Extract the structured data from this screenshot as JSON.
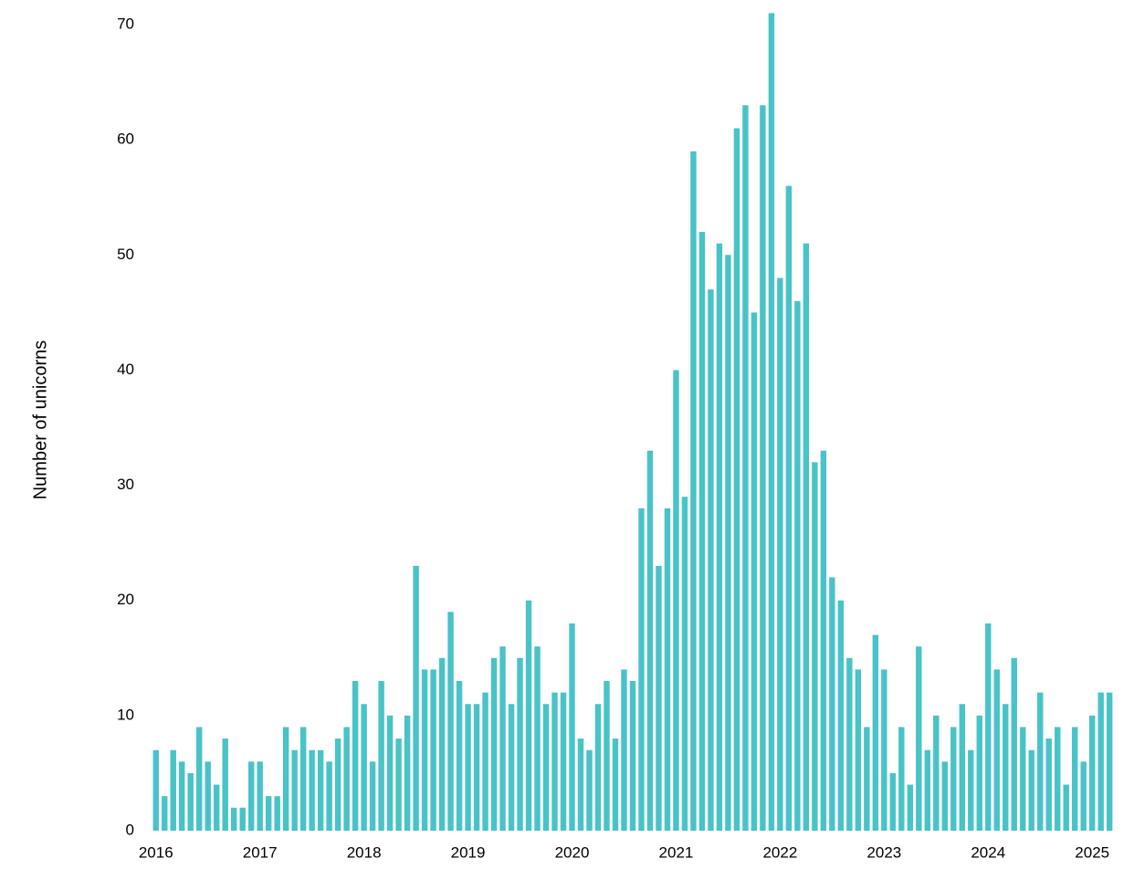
{
  "chart_data": {
    "type": "bar",
    "y_label": "Number of unicorns",
    "categories": [
      "2016",
      null,
      null,
      null,
      null,
      null,
      null,
      null,
      null,
      null,
      null,
      null,
      "2017",
      null,
      null,
      null,
      null,
      null,
      null,
      null,
      null,
      null,
      null,
      null,
      "2018",
      null,
      null,
      null,
      null,
      null,
      null,
      null,
      null,
      null,
      null,
      null,
      "2019",
      null,
      null,
      null,
      null,
      null,
      null,
      null,
      null,
      null,
      null,
      null,
      "2020",
      null,
      null,
      null,
      null,
      null,
      null,
      null,
      null,
      null,
      null,
      null,
      "2021",
      null,
      null,
      null,
      null,
      null,
      null,
      null,
      null,
      null,
      null,
      null,
      "2022",
      null,
      null,
      null,
      null,
      null,
      null,
      null,
      null,
      null,
      null,
      null,
      "2023",
      null,
      null,
      null,
      null,
      null,
      null,
      null,
      null,
      null,
      null,
      null,
      "2024",
      null,
      null,
      null,
      null,
      null,
      null,
      null,
      null,
      null,
      null,
      null,
      "2025",
      null,
      null
    ],
    "values": [
      7,
      3,
      7,
      6,
      5,
      9,
      6,
      4,
      8,
      2,
      2,
      6,
      6,
      3,
      3,
      9,
      7,
      9,
      7,
      7,
      6,
      8,
      9,
      13,
      11,
      6,
      13,
      10,
      8,
      10,
      23,
      14,
      14,
      15,
      19,
      13,
      11,
      11,
      12,
      15,
      16,
      11,
      15,
      20,
      16,
      11,
      12,
      12,
      18,
      8,
      7,
      11,
      13,
      8,
      14,
      13,
      28,
      33,
      23,
      28,
      40,
      29,
      59,
      52,
      47,
      51,
      50,
      61,
      63,
      45,
      63,
      71,
      48,
      56,
      46,
      51,
      32,
      33,
      22,
      20,
      15,
      14,
      9,
      17,
      14,
      5,
      9,
      4,
      16,
      7,
      10,
      6,
      9,
      11,
      7,
      10,
      18,
      14,
      11,
      15,
      9,
      7,
      12,
      8,
      9,
      4,
      9,
      6,
      10,
      12,
      12
    ],
    "color": "#48c3c8",
    "ylim": [
      0,
      70
    ],
    "yticks": [
      0,
      10,
      20,
      30,
      40,
      50,
      60,
      70
    ],
    "grid": false
  }
}
